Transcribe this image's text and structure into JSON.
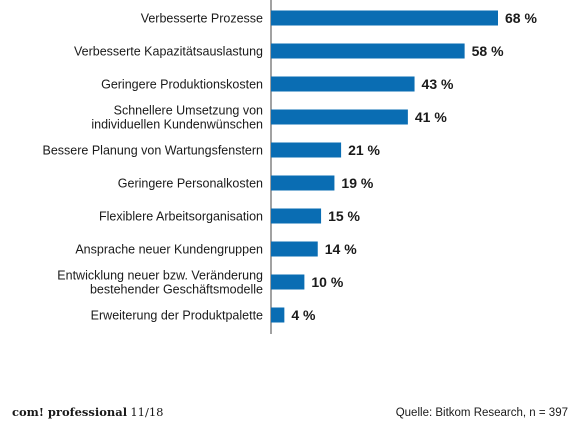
{
  "chart_data": {
    "type": "bar",
    "orientation": "horizontal",
    "categories": [
      "Verbesserte Prozesse",
      "Verbesserte Kapazitätsauslastung",
      "Geringere Produktionskosten",
      "Schnellere Umsetzung von individuellen Kundenwünschen",
      "Bessere Planung von Wartungsfenstern",
      "Geringere Personalkosten",
      "Flexiblere Arbeitsorganisation",
      "Ansprache neuer Kundengruppen",
      "Entwicklung neuer bzw. Veränderung bestehender Geschäftsmodelle",
      "Erweiterung der Produktpalette"
    ],
    "category_lines": [
      [
        "Verbesserte Prozesse"
      ],
      [
        "Verbesserte Kapazitätsauslastung"
      ],
      [
        "Geringere Produktionskosten"
      ],
      [
        "Schnellere Umsetzung von",
        "individuellen Kundenwünschen"
      ],
      [
        "Bessere Planung von Wartungsfenstern"
      ],
      [
        "Geringere Personalkosten"
      ],
      [
        "Flexiblere Arbeitsorganisation"
      ],
      [
        "Ansprache neuer Kundengruppen"
      ],
      [
        "Entwicklung neuer bzw. Veränderung",
        "bestehender Geschäftsmodelle"
      ],
      [
        "Erweiterung der Produktpalette"
      ]
    ],
    "values": [
      68,
      58,
      43,
      41,
      21,
      19,
      15,
      14,
      10,
      4
    ],
    "value_labels": [
      "68 %",
      "58 %",
      "43 %",
      "41 %",
      "21 %",
      "19 %",
      "15 %",
      "14 %",
      "10 %",
      "4 %"
    ],
    "unit": "%",
    "xlim": [
      0,
      100
    ],
    "grid": false,
    "bar_color": "#0a6db3"
  },
  "footer": {
    "brand": "com! professional",
    "issue": "11/18",
    "source": "Quelle: Bitkom Research, n = 397"
  }
}
